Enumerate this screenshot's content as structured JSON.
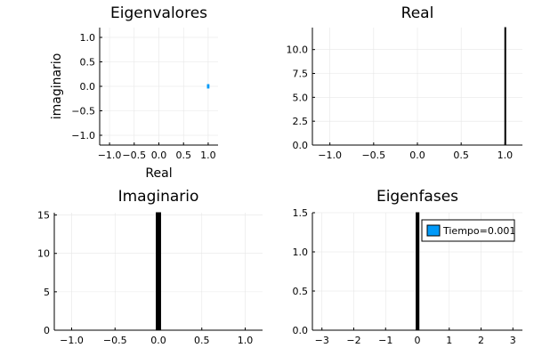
{
  "chart_data": [
    {
      "type": "scatter",
      "title": "Eigenvalores",
      "xlabel": "Real",
      "ylabel": "imaginario",
      "xlim": [
        -1.2,
        1.2
      ],
      "ylim": [
        -1.2,
        1.2
      ],
      "x_ticks": [
        -1.0,
        -0.5,
        0.0,
        0.5,
        1.0
      ],
      "x_tick_labels": [
        "−1.0",
        "−0.5",
        "0.0",
        "0.5",
        "1.0"
      ],
      "y_ticks": [
        -1.0,
        -0.5,
        0.0,
        0.5,
        1.0
      ],
      "y_tick_labels": [
        "−1.0",
        "−0.5",
        "0.0",
        "0.5",
        "1.0"
      ],
      "grid": true,
      "series": [
        {
          "points": [
            {
              "x": 0.9995,
              "y": 0.0
            }
          ],
          "color": "#009af9"
        }
      ]
    },
    {
      "type": "bar",
      "title": "Real",
      "xlabel": "",
      "ylabel": "",
      "xlim": [
        -1.2,
        1.2
      ],
      "ylim": [
        0,
        12.3
      ],
      "x_ticks": [
        -1.0,
        -0.5,
        0.0,
        0.5,
        1.0
      ],
      "x_tick_labels": [
        "−1.0",
        "−0.5",
        "0.0",
        "0.5",
        "1.0"
      ],
      "y_ticks": [
        0,
        2.5,
        5.0,
        7.5,
        10.0
      ],
      "y_tick_labels": [
        "0.0",
        "2.5",
        "5.0",
        "7.5",
        "10.0"
      ],
      "grid": true,
      "bars": [
        {
          "x0": 0.999,
          "x1": 1.0,
          "value": 12.3
        }
      ],
      "color": "#009af9"
    },
    {
      "type": "bar",
      "title": "Imaginario",
      "xlabel": "",
      "ylabel": "",
      "xlim": [
        -1.2,
        1.2
      ],
      "ylim": [
        0,
        15.3
      ],
      "x_ticks": [
        -1.0,
        -0.5,
        0.0,
        0.5,
        1.0
      ],
      "x_tick_labels": [
        "−1.0",
        "−0.5",
        "0.0",
        "0.5",
        "1.0"
      ],
      "y_ticks": [
        0,
        5,
        10,
        15
      ],
      "y_tick_labels": [
        "0",
        "5",
        "10",
        "15"
      ],
      "grid": true,
      "bars": [
        {
          "x0": -0.025,
          "x1": -0.015,
          "value": 15.3
        },
        {
          "x0": -0.015,
          "x1": -0.005,
          "value": 15.3
        },
        {
          "x0": -0.005,
          "x1": 0.005,
          "value": 15.3
        },
        {
          "x0": 0.005,
          "x1": 0.015,
          "value": 15.3
        },
        {
          "x0": 0.015,
          "x1": 0.025,
          "value": 15.3
        }
      ],
      "color": "#009af9"
    },
    {
      "type": "bar",
      "title": "Eigenfases",
      "xlabel": "",
      "ylabel": "",
      "xlim": [
        -3.3,
        3.3
      ],
      "ylim": [
        0,
        1.5
      ],
      "x_ticks": [
        -3,
        -2,
        -1,
        0,
        1,
        2,
        3
      ],
      "x_tick_labels": [
        "−3",
        "−2",
        "−1",
        "0",
        "1",
        "2",
        "3"
      ],
      "y_ticks": [
        0,
        0.5,
        1.0,
        1.5
      ],
      "y_tick_labels": [
        "0.0",
        "0.5",
        "1.0",
        "1.5"
      ],
      "grid": true,
      "legend": {
        "position": "top-right",
        "entries": [
          "Tiempo=0.001"
        ]
      },
      "bars": [
        {
          "x0": -0.04,
          "x1": -0.02,
          "value": 1.5
        },
        {
          "x0": -0.02,
          "x1": 0.0,
          "value": 1.5
        },
        {
          "x0": 0.0,
          "x1": 0.02,
          "value": 1.5
        },
        {
          "x0": 0.02,
          "x1": 0.04,
          "value": 1.5
        }
      ],
      "color": "#009af9"
    }
  ]
}
